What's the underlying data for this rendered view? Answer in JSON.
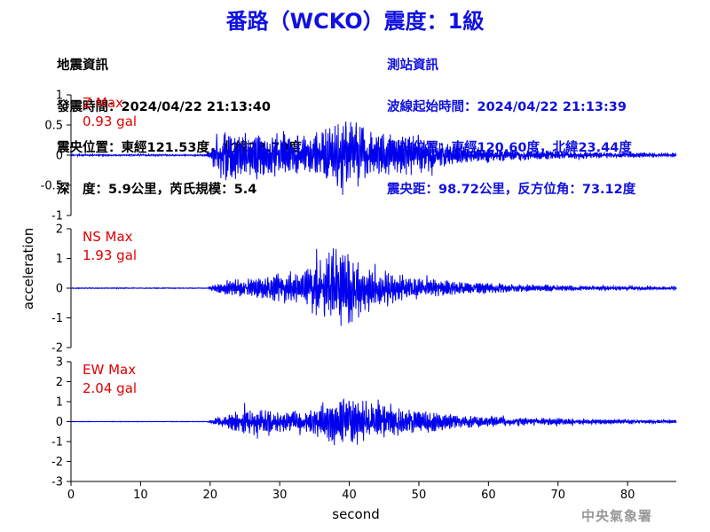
{
  "title": "番路（WCKO）震度：1級",
  "earthquake_info": {
    "heading": "地震資訊",
    "time": "發震時間：2024/04/22 21:13:40",
    "epicenter": "震央位置：東經121.53度，北緯23.70度",
    "depth_mag": "深　度：5.9公里，芮氏規模：5.4"
  },
  "station_info": {
    "heading": "測站資訊",
    "wave_start": "波線起始時間：2024/04/22 21:13:39",
    "location": "測站位置：東經120.60度，北緯23.44度",
    "distance": "震央距：98.72公里，反方位角：73.12度"
  },
  "credit": "中央氣象署",
  "colors": {
    "trace": "#0000ee",
    "label": "#e00000",
    "title": "#1010e0"
  },
  "chart_data": {
    "type": "line",
    "xlabel": "second",
    "ylabel": "acceleration",
    "xlim": [
      0,
      87
    ],
    "xticks": [
      0,
      10,
      20,
      30,
      40,
      50,
      60,
      70,
      80
    ],
    "panels": [
      {
        "name": "Z",
        "label": "Z Max",
        "max_label": "0.93 gal",
        "ylim": [
          -1,
          1
        ],
        "yticks": [
          "1",
          "0.5",
          "0",
          "-0.5",
          "-1"
        ],
        "ytick_values": [
          1,
          0.5,
          0,
          -0.5,
          -1
        ],
        "envelope": {
          "t": [
            0,
            19.5,
            20.5,
            21,
            22,
            24,
            26,
            28,
            30,
            32,
            34,
            36,
            38,
            40,
            42,
            44,
            46,
            48,
            50,
            52,
            55,
            58,
            62,
            66,
            70,
            75,
            80,
            87
          ],
          "amp": [
            0.02,
            0.02,
            0.3,
            0.6,
            0.55,
            0.6,
            0.6,
            0.5,
            0.55,
            0.45,
            0.5,
            0.55,
            0.9,
            0.93,
            0.6,
            0.5,
            0.55,
            0.45,
            0.5,
            0.35,
            0.25,
            0.2,
            0.15,
            0.12,
            0.1,
            0.08,
            0.06,
            0.05
          ]
        },
        "seed": 7
      },
      {
        "name": "NS",
        "label": "NS Max",
        "max_label": "1.93 gal",
        "ylim": [
          -2,
          2
        ],
        "yticks": [
          "2",
          "1",
          "0",
          "-1",
          "-2"
        ],
        "ytick_values": [
          2,
          1,
          0,
          -1,
          -2
        ],
        "envelope": {
          "t": [
            0,
            19.5,
            21,
            23,
            25,
            27,
            30,
            32,
            34,
            36,
            38,
            40,
            42,
            44,
            46,
            48,
            50,
            53,
            56,
            60,
            65,
            70,
            75,
            80,
            87
          ],
          "amp": [
            0.02,
            0.02,
            0.2,
            0.35,
            0.45,
            0.6,
            0.7,
            0.7,
            1.0,
            1.6,
            1.9,
            1.93,
            1.2,
            0.9,
            0.8,
            0.6,
            0.5,
            0.4,
            0.3,
            0.25,
            0.18,
            0.15,
            0.12,
            0.1,
            0.08
          ]
        },
        "seed": 23
      },
      {
        "name": "EW",
        "label": "EW Max",
        "max_label": "2.04 gal",
        "ylim": [
          -3,
          3
        ],
        "yticks": [
          "3",
          "2",
          "1",
          "0",
          "-1",
          "-2",
          "-3"
        ],
        "ytick_values": [
          3,
          2,
          1,
          0,
          -1,
          -2,
          -3
        ],
        "envelope": {
          "t": [
            0,
            19.5,
            21,
            23,
            25,
            27,
            30,
            33,
            35,
            37,
            39,
            41,
            43,
            45,
            47,
            49,
            52,
            55,
            58,
            62,
            66,
            70,
            75,
            80,
            87
          ],
          "amp": [
            0.02,
            0.02,
            0.3,
            0.6,
            1.0,
            0.9,
            0.7,
            0.8,
            1.2,
            1.5,
            2.04,
            1.7,
            1.3,
            1.2,
            1.0,
            0.8,
            0.7,
            0.5,
            0.4,
            0.35,
            0.3,
            0.25,
            0.2,
            0.15,
            0.12
          ]
        },
        "seed": 41
      }
    ]
  }
}
